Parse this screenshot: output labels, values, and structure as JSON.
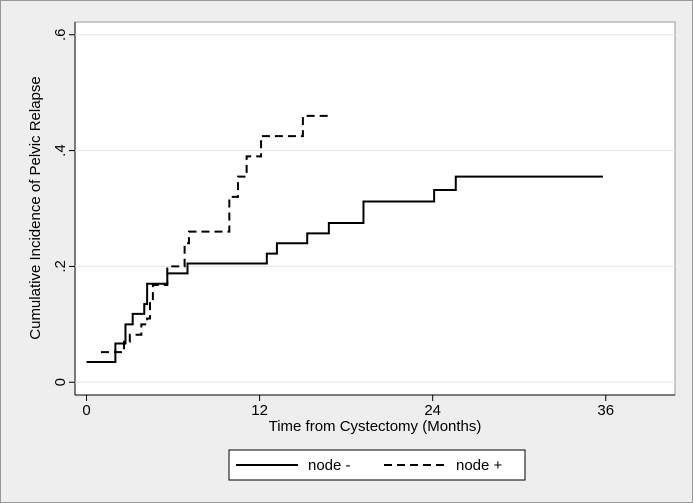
{
  "chart_data": {
    "type": "step",
    "xlabel": "Time from Cystectomy (Months)",
    "ylabel": "Cumulative Incidence of Pelvic Relapse",
    "xlim": [
      -0.8,
      40.8
    ],
    "ylim": [
      -0.022,
      0.622
    ],
    "xticks": [
      0,
      12,
      24,
      36
    ],
    "yticks": [
      0,
      {
        "value": 0.2,
        "label": ".2"
      },
      {
        "value": 0.4,
        "label": ".4"
      },
      {
        "value": 0.6,
        "label": ".6"
      }
    ],
    "grid": true,
    "legend": "bottom",
    "series": [
      {
        "name": "node -",
        "color": "#000000",
        "dash": "solid",
        "x": [
          0,
          2,
          2.7,
          3.2,
          4,
          4.2,
          5.6,
          7,
          12.5,
          13.2,
          15.3,
          16.8,
          19.2,
          24.1,
          25.6,
          35.8
        ],
        "values": [
          0.035,
          0.067,
          0.1,
          0.118,
          0.135,
          0.17,
          0.188,
          0.205,
          0.222,
          0.24,
          0.257,
          0.275,
          0.312,
          0.332,
          0.355,
          0.355
        ]
      },
      {
        "name": "node +",
        "color": "#000000",
        "dash": "dashed",
        "x": [
          1,
          2.6,
          3,
          3.8,
          4.2,
          4.4,
          4.6,
          5.6,
          6.8,
          7.1,
          9.9,
          10.5,
          11.1,
          12.1,
          15,
          17
        ],
        "values": [
          0.052,
          0.07,
          0.082,
          0.1,
          0.11,
          0.14,
          0.168,
          0.2,
          0.24,
          0.26,
          0.32,
          0.355,
          0.39,
          0.425,
          0.46,
          0.46
        ]
      }
    ]
  }
}
